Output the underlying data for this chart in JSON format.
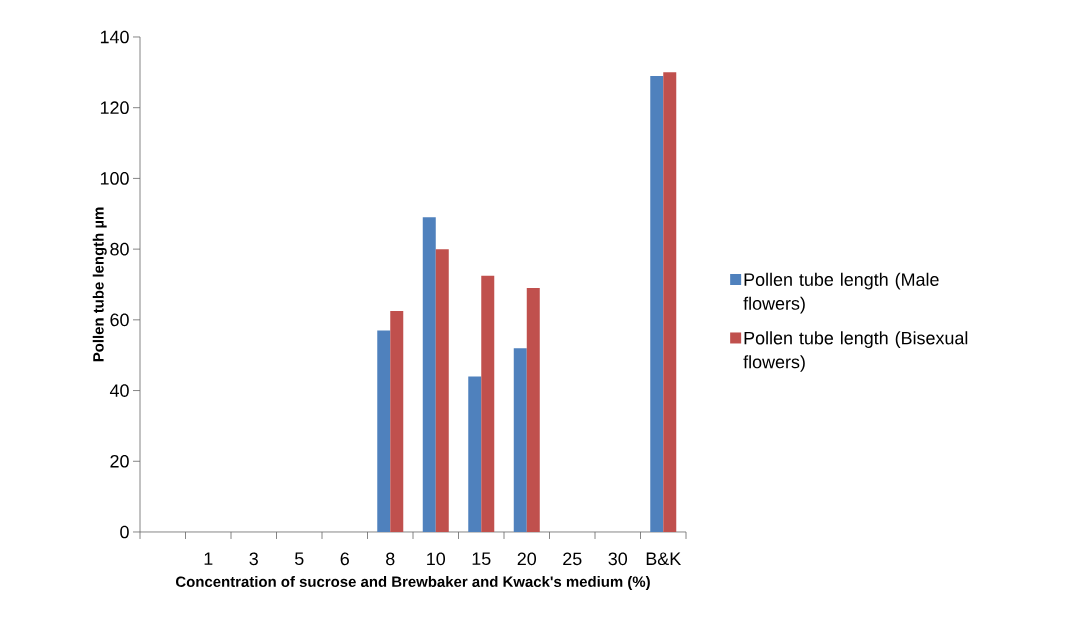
{
  "chart_data": {
    "type": "bar",
    "xlabel": "Concentration of sucrose and Brewbaker and Kwack's medium (%)",
    "ylabel": "Pollen tube length µm",
    "categories": [
      null,
      "1",
      "3",
      "5",
      "6",
      "8",
      "10",
      "15",
      "20",
      "25",
      "30",
      "B&K"
    ],
    "series": [
      {
        "name": "Pollen tube length (Male flowers)",
        "color": "#4f81bd",
        "values": [
          0,
          0,
          0,
          0,
          0,
          57,
          89,
          44,
          52,
          0,
          0,
          129
        ]
      },
      {
        "name": "Pollen tube length (Bisexual flowers)",
        "color": "#c0504d",
        "values": [
          0,
          0,
          0,
          0,
          0,
          62.5,
          80,
          72.5,
          69,
          0,
          0,
          130
        ]
      }
    ],
    "ylim": [
      0,
      140
    ],
    "yticks": [
      0,
      20,
      40,
      60,
      80,
      100,
      120,
      140
    ],
    "grid": false,
    "legend": "right"
  }
}
